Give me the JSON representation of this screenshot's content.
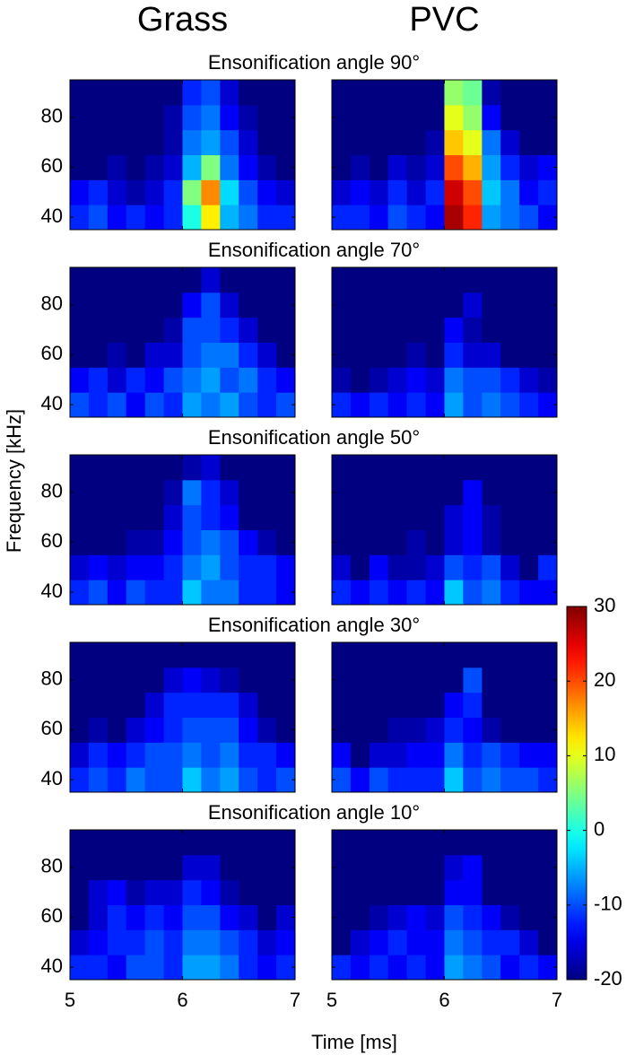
{
  "chart_data": {
    "type": "heatmap",
    "columns": [
      "Grass",
      "PVC"
    ],
    "xlabel": "Time [ms]",
    "ylabel": "Frequency [kHz]",
    "x": [
      5.083,
      5.25,
      5.417,
      5.583,
      5.75,
      5.917,
      6.083,
      6.25,
      6.417,
      6.583,
      6.75,
      6.917
    ],
    "y": [
      40,
      50,
      60,
      70,
      80,
      90
    ],
    "xlim": [
      5,
      7
    ],
    "ylim": [
      35,
      95
    ],
    "xticks": [
      5,
      6,
      7
    ],
    "yticks": [
      40,
      60,
      80
    ],
    "colorbar": {
      "lim": [
        -20,
        30
      ],
      "ticks": [
        -20,
        -10,
        0,
        10,
        20,
        30
      ]
    },
    "rows": [
      {
        "title": "Ensonification angle 90°",
        "panels": [
          {
            "values": [
              [
                -12,
                -10,
                -14,
                -12,
                -14,
                -12,
                0,
                12,
                -5,
                -8,
                -12,
                -12
              ],
              [
                -14,
                -12,
                -16,
                -18,
                -16,
                -12,
                5,
                17,
                -3,
                -10,
                -14,
                -16
              ],
              [
                -20,
                -20,
                -18,
                -20,
                -18,
                -16,
                -5,
                5,
                -8,
                -14,
                -18,
                -20
              ],
              [
                -20,
                -20,
                -20,
                -20,
                -20,
                -18,
                -8,
                -6,
                -10,
                -16,
                -20,
                -20
              ],
              [
                -20,
                -20,
                -20,
                -20,
                -20,
                -18,
                -10,
                -8,
                -14,
                -18,
                -20,
                -20
              ],
              [
                -20,
                -20,
                -20,
                -20,
                -20,
                -20,
                -12,
                -10,
                -16,
                -20,
                -20,
                -20
              ]
            ]
          },
          {
            "values": [
              [
                -12,
                -12,
                -14,
                -10,
                -12,
                -14,
                28,
                22,
                -6,
                -8,
                -10,
                -14
              ],
              [
                -16,
                -14,
                -16,
                -12,
                -16,
                -12,
                26,
                20,
                -4,
                -8,
                -14,
                -12
              ],
              [
                -20,
                -18,
                -20,
                -16,
                -18,
                -16,
                20,
                15,
                -6,
                -12,
                -16,
                -14
              ],
              [
                -20,
                -20,
                -20,
                -20,
                -20,
                -18,
                14,
                10,
                -8,
                -16,
                -20,
                -20
              ],
              [
                -20,
                -20,
                -20,
                -20,
                -20,
                -20,
                10,
                6,
                -14,
                -20,
                -20,
                -20
              ],
              [
                -20,
                -20,
                -20,
                -20,
                -20,
                -20,
                6,
                4,
                -18,
                -20,
                -20,
                -20
              ]
            ]
          }
        ]
      },
      {
        "title": "Ensonification angle 70°",
        "panels": [
          {
            "values": [
              [
                -10,
                -12,
                -10,
                -14,
                -10,
                -12,
                -6,
                -8,
                -6,
                -10,
                -12,
                -10
              ],
              [
                -14,
                -12,
                -16,
                -12,
                -14,
                -10,
                -8,
                -6,
                -10,
                -8,
                -12,
                -14
              ],
              [
                -20,
                -20,
                -18,
                -20,
                -16,
                -16,
                -10,
                -8,
                -8,
                -12,
                -16,
                -20
              ],
              [
                -20,
                -20,
                -20,
                -20,
                -20,
                -18,
                -10,
                -10,
                -12,
                -16,
                -20,
                -20
              ],
              [
                -20,
                -20,
                -20,
                -20,
                -20,
                -20,
                -14,
                -10,
                -16,
                -20,
                -20,
                -20
              ],
              [
                -20,
                -20,
                -20,
                -20,
                -20,
                -20,
                -20,
                -16,
                -20,
                -20,
                -20,
                -20
              ]
            ]
          },
          {
            "values": [
              [
                -12,
                -14,
                -12,
                -14,
                -12,
                -14,
                -6,
                -10,
                -8,
                -10,
                -12,
                -14
              ],
              [
                -18,
                -20,
                -18,
                -16,
                -14,
                -16,
                -8,
                -10,
                -10,
                -12,
                -16,
                -18
              ],
              [
                -20,
                -20,
                -20,
                -20,
                -18,
                -20,
                -12,
                -16,
                -16,
                -20,
                -20,
                -20
              ],
              [
                -20,
                -20,
                -20,
                -20,
                -20,
                -20,
                -14,
                -18,
                -20,
                -20,
                -20,
                -20
              ],
              [
                -20,
                -20,
                -20,
                -20,
                -20,
                -20,
                -20,
                -16,
                -20,
                -20,
                -20,
                -20
              ],
              [
                -20,
                -20,
                -20,
                -20,
                -20,
                -20,
                -20,
                -20,
                -20,
                -20,
                -20,
                -20
              ]
            ]
          }
        ]
      },
      {
        "title": "Ensonification angle 50°",
        "panels": [
          {
            "values": [
              [
                -12,
                -10,
                -14,
                -10,
                -12,
                -12,
                -4,
                -8,
                -8,
                -12,
                -12,
                -14
              ],
              [
                -16,
                -14,
                -16,
                -14,
                -14,
                -12,
                -8,
                -6,
                -10,
                -12,
                -12,
                -14
              ],
              [
                -20,
                -20,
                -20,
                -18,
                -18,
                -14,
                -10,
                -8,
                -10,
                -14,
                -18,
                -20
              ],
              [
                -20,
                -20,
                -20,
                -20,
                -20,
                -16,
                -10,
                -12,
                -14,
                -20,
                -20,
                -20
              ],
              [
                -20,
                -20,
                -20,
                -20,
                -20,
                -18,
                -8,
                -12,
                -16,
                -20,
                -20,
                -20
              ],
              [
                -20,
                -20,
                -20,
                -20,
                -20,
                -20,
                -18,
                -16,
                -20,
                -20,
                -20,
                -20
              ]
            ]
          },
          {
            "values": [
              [
                -12,
                -14,
                -12,
                -14,
                -12,
                -14,
                -4,
                -10,
                -8,
                -12,
                -14,
                -14
              ],
              [
                -16,
                -20,
                -14,
                -18,
                -18,
                -16,
                -10,
                -12,
                -10,
                -16,
                -20,
                -12
              ],
              [
                -20,
                -20,
                -20,
                -20,
                -18,
                -20,
                -16,
                -14,
                -18,
                -20,
                -20,
                -20
              ],
              [
                -20,
                -20,
                -20,
                -20,
                -20,
                -20,
                -16,
                -14,
                -18,
                -20,
                -20,
                -20
              ],
              [
                -20,
                -20,
                -20,
                -20,
                -20,
                -20,
                -20,
                -14,
                -20,
                -20,
                -20,
                -20
              ],
              [
                -20,
                -20,
                -20,
                -20,
                -20,
                -20,
                -20,
                -20,
                -20,
                -20,
                -20,
                -20
              ]
            ]
          }
        ]
      },
      {
        "title": "Ensonification angle 30°",
        "panels": [
          {
            "values": [
              [
                -12,
                -10,
                -12,
                -8,
                -10,
                -10,
                -4,
                -8,
                -6,
                -10,
                -12,
                -10
              ],
              [
                -16,
                -12,
                -14,
                -12,
                -10,
                -10,
                -8,
                -10,
                -8,
                -12,
                -12,
                -14
              ],
              [
                -20,
                -18,
                -20,
                -16,
                -14,
                -12,
                -10,
                -10,
                -10,
                -14,
                -18,
                -20
              ],
              [
                -20,
                -20,
                -20,
                -20,
                -16,
                -12,
                -12,
                -12,
                -12,
                -16,
                -20,
                -20
              ],
              [
                -20,
                -20,
                -20,
                -20,
                -20,
                -16,
                -14,
                -16,
                -18,
                -20,
                -20,
                -20
              ],
              [
                -20,
                -20,
                -20,
                -20,
                -20,
                -20,
                -20,
                -20,
                -20,
                -20,
                -20,
                -20
              ]
            ]
          },
          {
            "values": [
              [
                -10,
                -14,
                -10,
                -12,
                -12,
                -12,
                -4,
                -10,
                -8,
                -10,
                -10,
                -12
              ],
              [
                -14,
                -20,
                -16,
                -16,
                -14,
                -14,
                -8,
                -12,
                -10,
                -12,
                -14,
                -14
              ],
              [
                -20,
                -20,
                -20,
                -18,
                -18,
                -16,
                -12,
                -14,
                -18,
                -20,
                -20,
                -20
              ],
              [
                -20,
                -20,
                -20,
                -20,
                -20,
                -20,
                -14,
                -12,
                -20,
                -20,
                -20,
                -20
              ],
              [
                -20,
                -20,
                -20,
                -20,
                -20,
                -20,
                -20,
                -10,
                -20,
                -20,
                -20,
                -20
              ],
              [
                -20,
                -20,
                -20,
                -20,
                -20,
                -20,
                -20,
                -20,
                -20,
                -20,
                -20,
                -20
              ]
            ]
          }
        ]
      },
      {
        "title": "Ensonification angle 10°",
        "panels": [
          {
            "values": [
              [
                -12,
                -12,
                -14,
                -10,
                -10,
                -12,
                -6,
                -6,
                -8,
                -12,
                -14,
                -12
              ],
              [
                -16,
                -14,
                -12,
                -12,
                -10,
                -12,
                -8,
                -8,
                -10,
                -12,
                -16,
                -14
              ],
              [
                -20,
                -16,
                -12,
                -14,
                -12,
                -14,
                -10,
                -10,
                -14,
                -16,
                -20,
                -16
              ],
              [
                -20,
                -16,
                -14,
                -18,
                -16,
                -16,
                -12,
                -14,
                -18,
                -20,
                -20,
                -20
              ],
              [
                -20,
                -20,
                -20,
                -20,
                -20,
                -20,
                -16,
                -16,
                -20,
                -20,
                -20,
                -20
              ],
              [
                -20,
                -20,
                -20,
                -20,
                -20,
                -20,
                -20,
                -20,
                -20,
                -20,
                -20,
                -20
              ]
            ]
          },
          {
            "values": [
              [
                -12,
                -14,
                -12,
                -14,
                -12,
                -14,
                -6,
                -8,
                -10,
                -14,
                -12,
                -14
              ],
              [
                -20,
                -16,
                -14,
                -12,
                -14,
                -14,
                -8,
                -10,
                -12,
                -12,
                -16,
                -20
              ],
              [
                -20,
                -20,
                -18,
                -16,
                -14,
                -16,
                -10,
                -12,
                -14,
                -18,
                -20,
                -20
              ],
              [
                -20,
                -20,
                -20,
                -20,
                -20,
                -20,
                -14,
                -14,
                -20,
                -20,
                -20,
                -20
              ],
              [
                -20,
                -20,
                -20,
                -20,
                -20,
                -20,
                -16,
                -14,
                -20,
                -20,
                -20,
                -20
              ],
              [
                -20,
                -20,
                -20,
                -20,
                -20,
                -20,
                -20,
                -20,
                -20,
                -20,
                -20,
                -20
              ]
            ]
          }
        ]
      }
    ]
  }
}
